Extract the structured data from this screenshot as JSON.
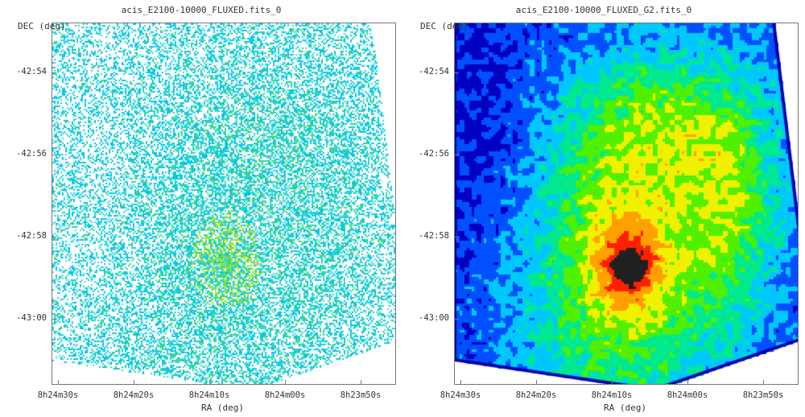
{
  "panels": [
    {
      "title": "acis_E2100-10000_FLUXED.fits_0",
      "style": "raw",
      "ylabel": "DEC (deg)",
      "xlabel": "RA (deg)",
      "yticks": [
        "-42:54",
        "-42:56",
        "-42:58",
        "-43:00"
      ],
      "xticks": [
        "8h24m30s",
        "8h24m20s",
        "8h24m10s",
        "8h24m00s",
        "8h23m50s"
      ]
    },
    {
      "title": "acis_E2100-10000_FLUXED_G2.fits_0",
      "style": "smooth",
      "ylabel": "DEC (deg)",
      "xlabel": "RA (deg)",
      "yticks": [
        "-42:54",
        "-42:56",
        "-42:58",
        "-43:00"
      ],
      "xticks": [
        "8h24m30s",
        "8h24m20s",
        "8h24m10s",
        "8h24m00s",
        "8h23m50s"
      ]
    }
  ],
  "colormap": [
    "#0000c0",
    "#0050ff",
    "#00c8ff",
    "#00e890",
    "#50f000",
    "#f0f000",
    "#ffa000",
    "#ff2000",
    "#202020"
  ]
}
